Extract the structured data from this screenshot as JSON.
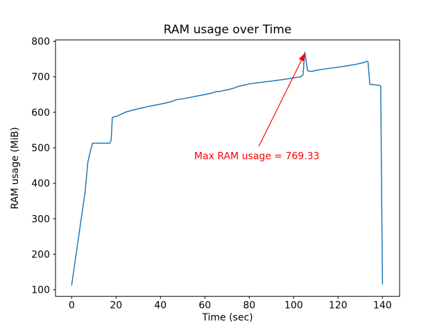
{
  "figure": {
    "background": "#ffffff"
  },
  "chart_data": {
    "type": "line",
    "title": "RAM usage over Time",
    "xlabel": "Time (sec)",
    "ylabel": "RAM usage (MiB)",
    "xlim": [
      -7.28,
      147.72
    ],
    "ylim": [
      81.4,
      803.8
    ],
    "xticks": [
      0,
      20,
      40,
      60,
      80,
      100,
      120,
      140
    ],
    "yticks": [
      100,
      200,
      300,
      400,
      500,
      600,
      700,
      800
    ],
    "grid": false,
    "legend": null,
    "line_color": "#1f77b4",
    "line_width": 1.5,
    "series": [
      {
        "name": "RAM usage",
        "points": [
          [
            0,
            113
          ],
          [
            2,
            200
          ],
          [
            4,
            287
          ],
          [
            6,
            373
          ],
          [
            7.3,
            460
          ],
          [
            8.4,
            490
          ],
          [
            9.4,
            513
          ],
          [
            17.2,
            513
          ],
          [
            17.8,
            522
          ],
          [
            18.3,
            585
          ],
          [
            19,
            587
          ],
          [
            20.5,
            589
          ],
          [
            21,
            591
          ],
          [
            25,
            602
          ],
          [
            30,
            610
          ],
          [
            35,
            617
          ],
          [
            40,
            623
          ],
          [
            45,
            630
          ],
          [
            47,
            635
          ],
          [
            50,
            638
          ],
          [
            55,
            644
          ],
          [
            60,
            650
          ],
          [
            63,
            654
          ],
          [
            65,
            658
          ],
          [
            67,
            659
          ],
          [
            68,
            661
          ],
          [
            70,
            663
          ],
          [
            73,
            668
          ],
          [
            75,
            673
          ],
          [
            78,
            677
          ],
          [
            80,
            680
          ],
          [
            85,
            684
          ],
          [
            90,
            688
          ],
          [
            95,
            692
          ],
          [
            100,
            697
          ],
          [
            103,
            700
          ],
          [
            104.2,
            705
          ],
          [
            105,
            769.33
          ],
          [
            106.3,
            717
          ],
          [
            108,
            715
          ],
          [
            110,
            718
          ],
          [
            115,
            723
          ],
          [
            120,
            727
          ],
          [
            125,
            732
          ],
          [
            128,
            735
          ],
          [
            130,
            738
          ],
          [
            132,
            741
          ],
          [
            133,
            744
          ],
          [
            133.5,
            742
          ],
          [
            134.3,
            679
          ],
          [
            136,
            678
          ],
          [
            138.5,
            676
          ],
          [
            139.2,
            674
          ],
          [
            140,
            116
          ]
        ]
      }
    ],
    "annotation": {
      "text": "Max RAM usage = 769.33",
      "color": "#ff0000",
      "text_at": [
        55.2,
        468
      ],
      "arrow_start": [
        84.3,
        504
      ],
      "arrow_end": [
        105,
        769.33
      ]
    },
    "max_value": 769.33
  }
}
